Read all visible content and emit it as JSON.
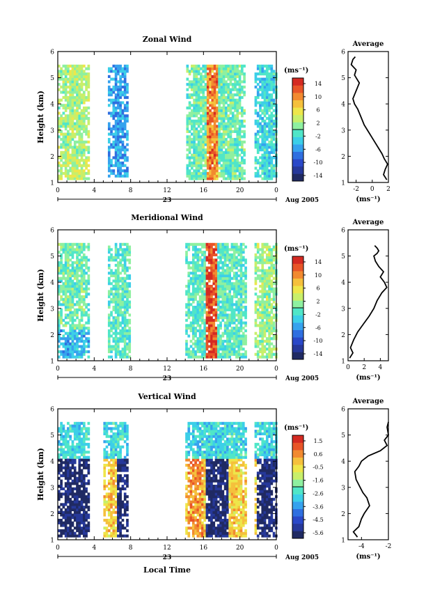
{
  "figure": {
    "date_label": "Aug 2005",
    "day_label": "23",
    "xlabel": "Local Time"
  },
  "colors": {
    "jet": [
      "#202a63",
      "#26389a",
      "#2a48c8",
      "#2f6fe0",
      "#36a2ee",
      "#3ccfe8",
      "#50e6c8",
      "#8ef0a0",
      "#c8ef6a",
      "#eee64a",
      "#f5c03c",
      "#f28a30",
      "#e85528",
      "#d42a22"
    ],
    "missing": "#ffffff"
  },
  "chart_data": [
    {
      "type": "heatmap",
      "id": "zonal",
      "title": "Zonal Wind",
      "ylabel": "Height (km)",
      "xlim": [
        0,
        24
      ],
      "ylim": [
        1,
        6
      ],
      "xticks": [
        "0",
        "4",
        "8",
        "12",
        "16",
        "20",
        "0"
      ],
      "yticks": [
        "1",
        "2",
        "3",
        "4",
        "5",
        "6"
      ],
      "colorbar": {
        "unit": "(ms⁻¹)",
        "ticks": [
          "14",
          "10",
          "6",
          "2",
          "-2",
          "-6",
          "-10",
          "-14"
        ],
        "range": [
          -14,
          14
        ]
      },
      "coverage": [
        [
          0,
          3.3,
          1.1,
          5.5
        ],
        [
          5.5,
          7.6,
          1.2,
          5.5
        ],
        [
          14.1,
          20.6,
          1.1,
          5.5
        ],
        [
          21.6,
          24,
          1.1,
          5.5
        ]
      ],
      "profile": {
        "title": "Average",
        "xlim": [
          -3,
          2
        ],
        "xticks": [
          "-2",
          "0",
          "2"
        ],
        "unit": "(ms⁻¹)",
        "x": [
          1.8,
          1.4,
          1.6,
          1.9,
          1.5,
          1.2,
          0.8,
          0.2,
          -0.4,
          -1.0,
          -1.4,
          -1.8,
          -2.2,
          -2.4,
          -2.0,
          -1.6,
          -2.2,
          -2.0,
          -2.6,
          -2.4,
          -2.1
        ],
        "y": [
          1.1,
          1.3,
          1.5,
          1.7,
          1.9,
          2.1,
          2.3,
          2.6,
          2.9,
          3.2,
          3.5,
          3.8,
          4.0,
          4.2,
          4.5,
          4.8,
          5.1,
          5.3,
          5.5,
          5.7,
          5.8
        ]
      }
    },
    {
      "type": "heatmap",
      "id": "meridional",
      "title": "Meridional Wind",
      "ylabel": "Height (km)",
      "xlim": [
        0,
        24
      ],
      "ylim": [
        1,
        6
      ],
      "xticks": [
        "0",
        "4",
        "8",
        "12",
        "16",
        "20",
        "0"
      ],
      "yticks": [
        "1",
        "2",
        "3",
        "4",
        "5",
        "6"
      ],
      "colorbar": {
        "unit": "(ms⁻¹)",
        "ticks": [
          "14",
          "10",
          "6",
          "2",
          "-2",
          "-6",
          "-10",
          "-14"
        ],
        "range": [
          -14,
          14
        ]
      },
      "coverage": [
        [
          0,
          3.3,
          1.1,
          5.5
        ],
        [
          5.5,
          8.0,
          1.1,
          5.5
        ],
        [
          14.0,
          20.6,
          1.1,
          5.5
        ],
        [
          21.6,
          24,
          1.1,
          5.5
        ]
      ],
      "profile": {
        "title": "Average",
        "xlim": [
          0,
          5
        ],
        "xticks": [
          "0",
          "2",
          "4"
        ],
        "unit": "(ms⁻¹)",
        "x": [
          0.2,
          0.6,
          0.3,
          0.7,
          1.2,
          1.9,
          2.6,
          3.2,
          3.6,
          4.2,
          4.8,
          4.5,
          4.0,
          4.4,
          3.8,
          3.4,
          3.2,
          3.6,
          3.8,
          3.6,
          3.3
        ],
        "y": [
          1.1,
          1.3,
          1.5,
          1.8,
          2.1,
          2.4,
          2.7,
          3.0,
          3.3,
          3.6,
          3.8,
          4.0,
          4.2,
          4.4,
          4.6,
          4.8,
          5.0,
          5.1,
          5.2,
          5.3,
          5.4
        ]
      }
    },
    {
      "type": "heatmap",
      "id": "vertical",
      "title": "Vertical Wind",
      "ylabel": "Height (km)",
      "xlim": [
        0,
        24
      ],
      "ylim": [
        1,
        6
      ],
      "xticks": [
        "0",
        "4",
        "8",
        "12",
        "16",
        "20",
        "0"
      ],
      "yticks": [
        "1",
        "2",
        "3",
        "4",
        "5",
        "6"
      ],
      "colorbar": {
        "unit": "(ms⁻¹)",
        "ticks": [
          "1.5",
          "0.6",
          "-0.5",
          "-1.6",
          "-2.6",
          "-3.6",
          "-4.5",
          "-5.6"
        ],
        "range": [
          -5.6,
          1.5
        ]
      },
      "coverage": [
        [
          0,
          3.4,
          1.1,
          5.5
        ],
        [
          5.0,
          7.6,
          1.1,
          5.5
        ],
        [
          14.0,
          20.6,
          1.1,
          5.5
        ],
        [
          21.6,
          24,
          1.1,
          5.5
        ]
      ],
      "profile": {
        "title": "Average",
        "xlim": [
          -5,
          -2
        ],
        "xticks": [
          "-4",
          "-2"
        ],
        "unit": "(ms⁻¹)",
        "x": [
          -4.3,
          -4.6,
          -4.2,
          -4.0,
          -3.8,
          -3.4,
          -3.6,
          -3.9,
          -4.1,
          -4.4,
          -4.5,
          -4.2,
          -4.0,
          -3.5,
          -2.6,
          -2.1,
          -2.3,
          -2.0,
          -2.1,
          -2.0
        ],
        "y": [
          1.1,
          1.3,
          1.5,
          1.8,
          2.0,
          2.3,
          2.6,
          2.8,
          3.0,
          3.3,
          3.6,
          3.8,
          4.0,
          4.2,
          4.4,
          4.6,
          4.8,
          5.0,
          5.3,
          5.5
        ]
      }
    }
  ]
}
